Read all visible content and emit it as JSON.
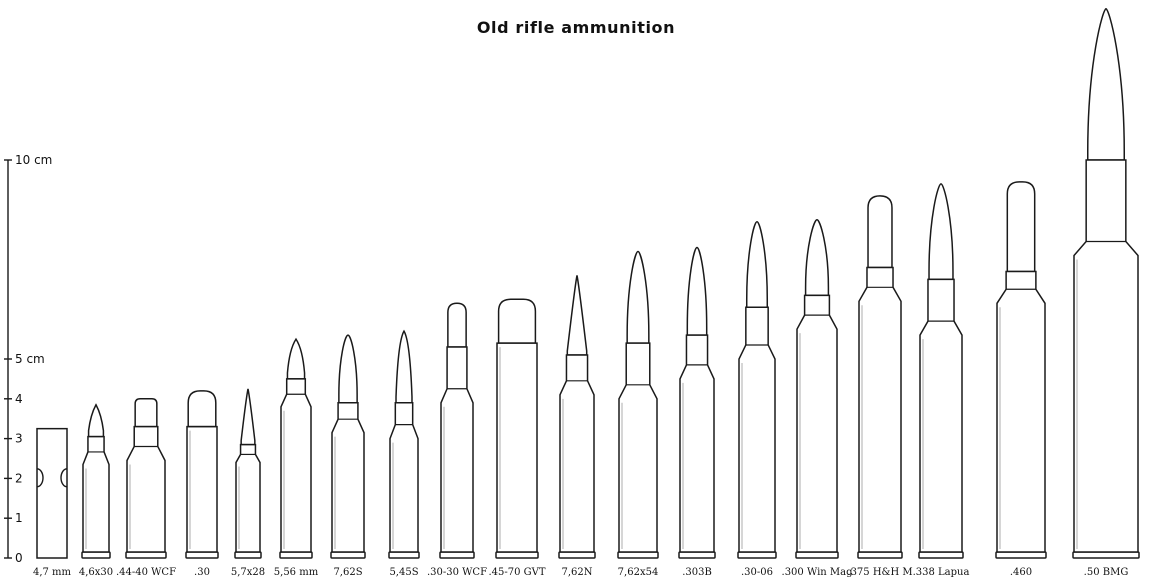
{
  "title": "Old rifle ammunition",
  "scale": {
    "unit": "cm",
    "ticks": [
      {
        "value": 0,
        "label": "0"
      },
      {
        "value": 1,
        "label": "1"
      },
      {
        "value": 2,
        "label": "2"
      },
      {
        "value": 3,
        "label": "3"
      },
      {
        "value": 4,
        "label": "4"
      },
      {
        "value": 5,
        "label": "5 cm"
      },
      {
        "value": 10,
        "label": "10 cm"
      }
    ]
  },
  "colors": {
    "outline": "#1a1a1a",
    "fill": "#ffffff"
  },
  "cartridges": [
    {
      "label": "4,7 mm",
      "type": "caseless",
      "length": 3.25
    },
    {
      "label": "4,6x30",
      "type": "pointed",
      "length": 3.85,
      "case": 2.35,
      "neck": 3.05
    },
    {
      "label": ".44-40 WCF",
      "type": "flat",
      "length": 4.0,
      "case": 2.45,
      "neck": 3.3
    },
    {
      "label": ".30",
      "type": "round",
      "length": 4.2,
      "case": 3.3,
      "neck": 3.3
    },
    {
      "label": "5,7x28",
      "type": "spike",
      "length": 4.25,
      "case": 2.4,
      "neck": 2.85
    },
    {
      "label": "5,56 mm",
      "type": "pointed",
      "length": 5.5,
      "case": 3.8,
      "neck": 4.5
    },
    {
      "label": "7,62S",
      "type": "ogive",
      "length": 5.6,
      "case": 3.15,
      "neck": 3.9
    },
    {
      "label": "5,45S",
      "type": "pointed",
      "length": 5.7,
      "case": 3.0,
      "neck": 3.9
    },
    {
      "label": ".30-30 WCF",
      "type": "round",
      "length": 6.4,
      "case": 3.9,
      "neck": 5.3
    },
    {
      "label": ".45-70 GVT",
      "type": "round",
      "length": 6.5,
      "case": 5.4,
      "neck": 5.4
    },
    {
      "label": "7,62N",
      "type": "spike",
      "length": 7.1,
      "case": 4.1,
      "neck": 5.1
    },
    {
      "label": "7,62x54",
      "type": "ogive",
      "length": 7.7,
      "case": 4.0,
      "neck": 5.4
    },
    {
      "label": ".303B",
      "type": "ogive",
      "length": 7.8,
      "case": 4.5,
      "neck": 5.6
    },
    {
      "label": ".30-06",
      "type": "ogive",
      "length": 8.45,
      "case": 5.0,
      "neck": 6.3
    },
    {
      "label": ".300 Win Mag",
      "type": "ogive",
      "length": 8.5,
      "case": 5.75,
      "neck": 6.6
    },
    {
      "label": ".375 H&H M",
      "type": "round",
      "length": 9.1,
      "case": 6.45,
      "neck": 7.3
    },
    {
      "label": ".338 Lapua",
      "type": "ogive",
      "length": 9.4,
      "case": 5.6,
      "neck": 7.0
    },
    {
      "label": ".460",
      "type": "round",
      "length": 9.45,
      "case": 6.4,
      "neck": 7.2
    },
    {
      "label": ".50 BMG",
      "type": "ogive",
      "length": 13.8,
      "case": 7.6,
      "neck": 10.0
    }
  ]
}
